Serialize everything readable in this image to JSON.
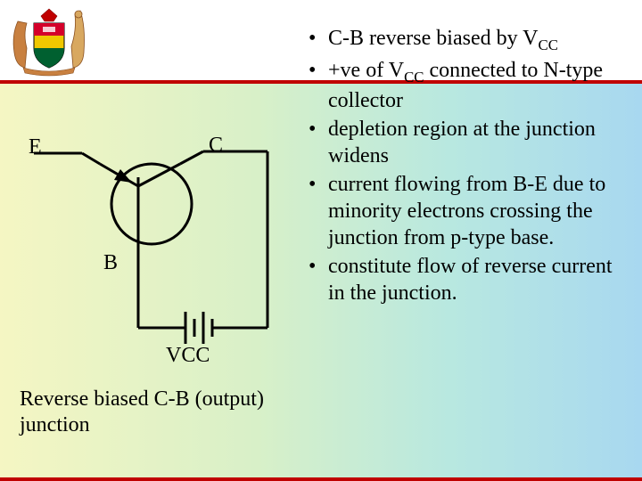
{
  "labels": {
    "E": "E",
    "C": "C",
    "B": "B",
    "VCC": "VCC"
  },
  "caption": "Reverse biased C-B (output) junction",
  "bullets": [
    "C-B reverse biased by V<sub class=\"sub\">CC</sub>",
    "+ve of V<sub class=\"sub\">CC</sub> connected to N-type collector",
    "depletion region at the junction widens",
    "current flowing from B-E due to minority electrons crossing the junction from p-type base.",
    "constitute flow of reverse current in the junction."
  ],
  "colors": {
    "divider": "#c00000",
    "stroke": "#000000"
  },
  "crest": {
    "shield_colors": [
      "#d4002a",
      "#f0c800",
      "#006030"
    ],
    "animal_color": "#c88040"
  }
}
